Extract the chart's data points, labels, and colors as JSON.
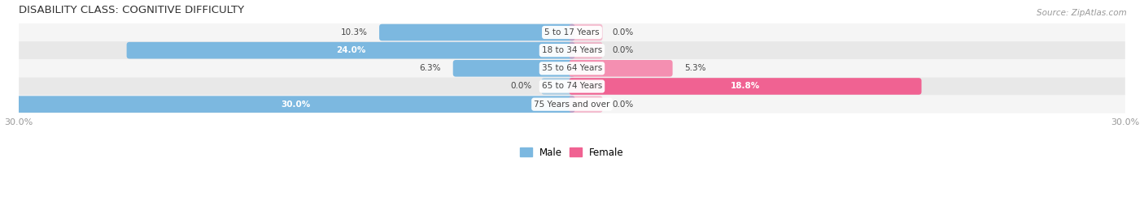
{
  "title": "DISABILITY CLASS: COGNITIVE DIFFICULTY",
  "source": "Source: ZipAtlas.com",
  "categories": [
    "5 to 17 Years",
    "18 to 34 Years",
    "35 to 64 Years",
    "65 to 74 Years",
    "75 Years and over"
  ],
  "male_values": [
    10.3,
    24.0,
    6.3,
    0.0,
    30.0
  ],
  "female_values": [
    0.0,
    0.0,
    5.3,
    18.8,
    0.0
  ],
  "max_val": 30.0,
  "male_color": "#7cb8e0",
  "female_color": "#f48fb1",
  "female_color_strong": "#f06292",
  "row_bg_light": "#f5f5f5",
  "row_bg_dark": "#e8e8e8",
  "label_color": "#444444",
  "title_color": "#333333",
  "axis_label_color": "#999999",
  "legend_male": "Male",
  "legend_female": "Female",
  "xlim": 30.0,
  "figsize": [
    14.06,
    2.69
  ],
  "dpi": 100
}
